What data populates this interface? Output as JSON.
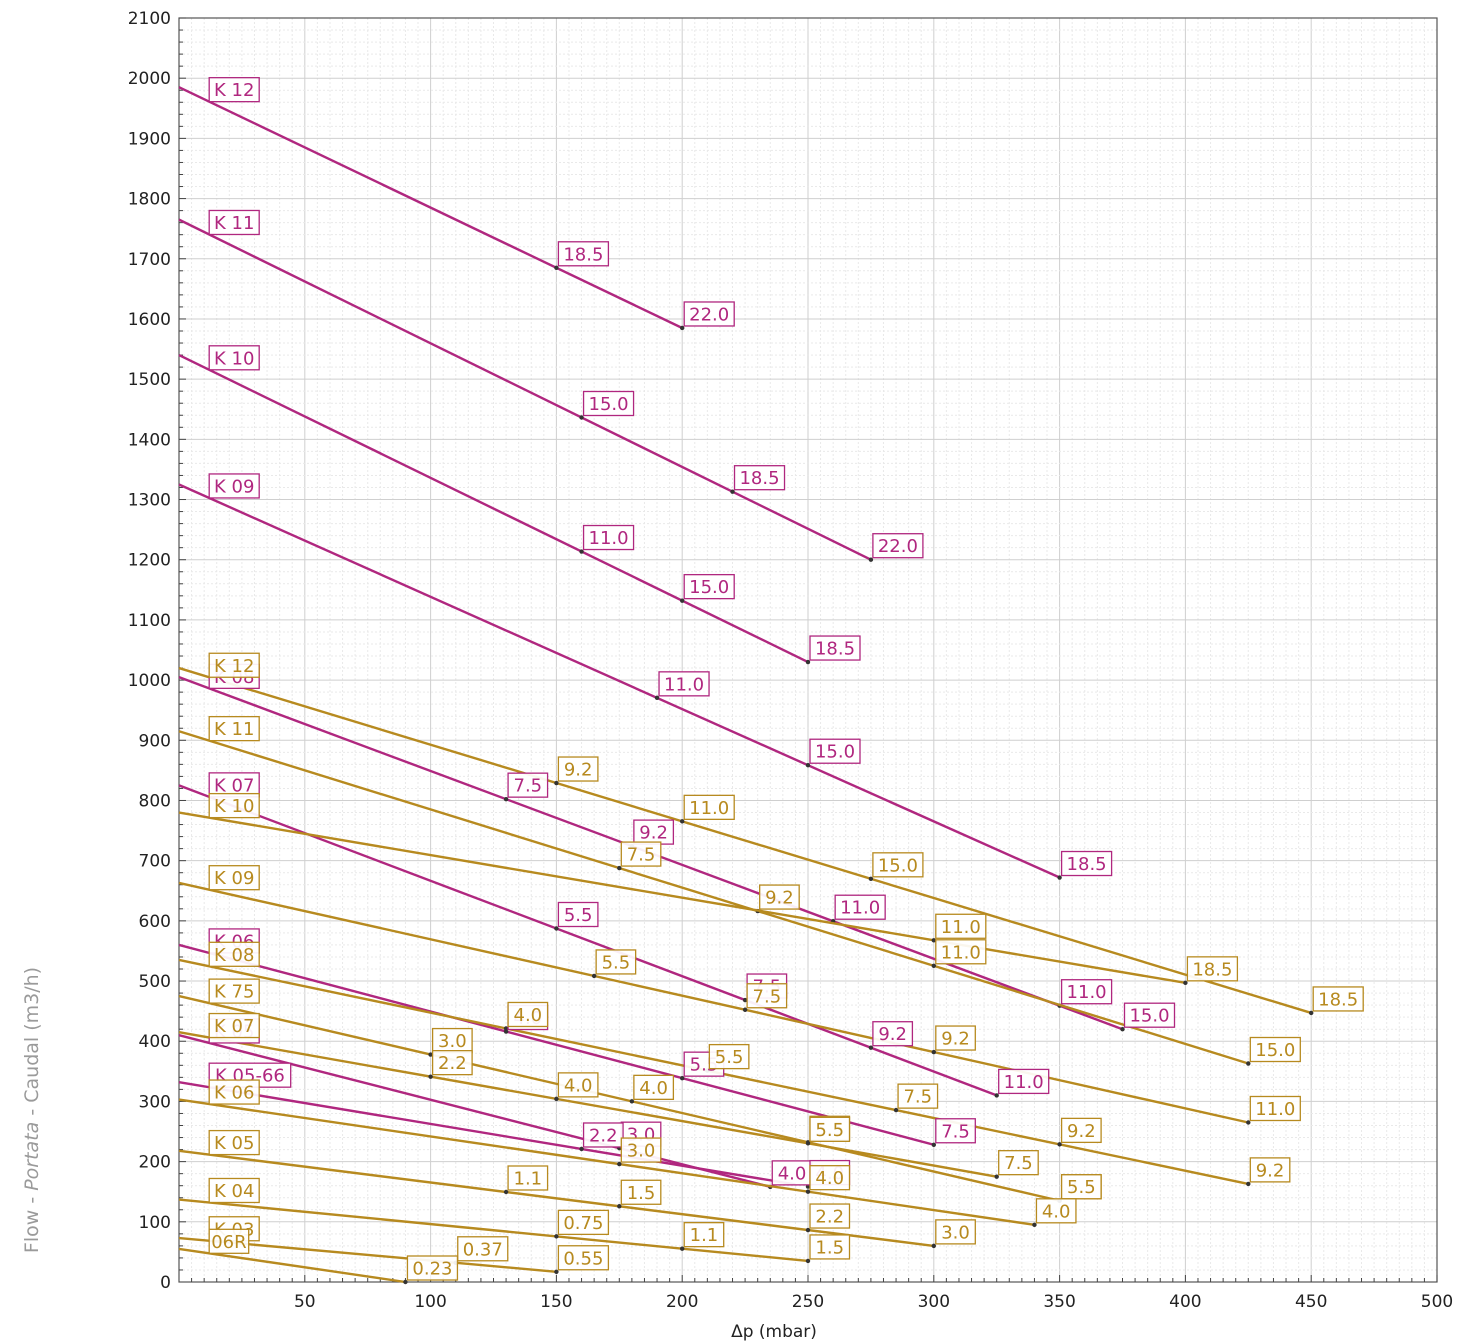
{
  "chart_data": {
    "type": "line",
    "title": "",
    "xlabel": "Δp (mbar)",
    "ylabel_parts": [
      "Flow - ",
      "Portata",
      " - Caudal (m3/h)"
    ],
    "xlim": [
      0,
      500
    ],
    "ylim": [
      0,
      2100
    ],
    "xticks": [
      50,
      100,
      150,
      200,
      250,
      300,
      350,
      400,
      450,
      500
    ],
    "yticks": [
      0,
      100,
      200,
      300,
      400,
      500,
      600,
      700,
      800,
      900,
      1000,
      1100,
      1200,
      1300,
      1400,
      1500,
      1600,
      1700,
      1800,
      1900,
      2000,
      2100
    ],
    "grid": true,
    "colors": {
      "magenta": "#b0277f",
      "gold": "#b78a1f"
    },
    "series": [
      {
        "name": "K 12",
        "color": "magenta",
        "points": [
          [
            0,
            1985
          ],
          [
            200,
            1585
          ]
        ],
        "markers": [
          {
            "text": "18.5",
            "x": 150
          },
          {
            "text": "22.0",
            "x": 200
          }
        ]
      },
      {
        "name": "K 11",
        "color": "magenta",
        "points": [
          [
            0,
            1765
          ],
          [
            275,
            1200
          ]
        ],
        "markers": [
          {
            "text": "15.0",
            "x": 160
          },
          {
            "text": "18.5",
            "x": 220
          },
          {
            "text": "22.0",
            "x": 275
          }
        ]
      },
      {
        "name": "K 10",
        "color": "magenta",
        "points": [
          [
            0,
            1540
          ],
          [
            250,
            1030
          ]
        ],
        "markers": [
          {
            "text": "11.0",
            "x": 160
          },
          {
            "text": "15.0",
            "x": 200
          },
          {
            "text": "18.5",
            "x": 250
          }
        ]
      },
      {
        "name": "K 09",
        "color": "magenta",
        "points": [
          [
            0,
            1325
          ],
          [
            350,
            672
          ]
        ],
        "markers": [
          {
            "text": "11.0",
            "x": 190
          },
          {
            "text": "15.0",
            "x": 250
          },
          {
            "text": "18.5",
            "x": 350
          }
        ]
      },
      {
        "name": "K 08",
        "color": "magenta",
        "points": [
          [
            0,
            1005
          ],
          [
            375,
            420
          ]
        ],
        "markers": [
          {
            "text": "7.5",
            "x": 130
          },
          {
            "text": "9.2",
            "x": 180
          },
          {
            "text": "11.0",
            "x": 260
          },
          {
            "text": "11.0",
            "x": 350
          },
          {
            "text": "15.0",
            "x": 375
          }
        ]
      },
      {
        "name": "K 07",
        "color": "magenta",
        "points": [
          [
            0,
            825
          ],
          [
            325,
            310
          ]
        ],
        "markers": [
          {
            "text": "5.5",
            "x": 150
          },
          {
            "text": "7.5",
            "x": 225
          },
          {
            "text": "9.2",
            "x": 275
          },
          {
            "text": "11.0",
            "x": 325
          }
        ]
      },
      {
        "name": "K 06",
        "color": "magenta",
        "points": [
          [
            0,
            560
          ],
          [
            300,
            228
          ]
        ],
        "markers": [
          {
            "text": "4.0",
            "x": 130
          },
          {
            "text": "5.5",
            "x": 200
          },
          {
            "text": "7.5",
            "x": 300
          }
        ]
      },
      {
        "name": "K 05",
        "color": "magenta",
        "points": [
          [
            0,
            410
          ],
          [
            235,
            158
          ]
        ],
        "markers": [
          {
            "text": "3.0",
            "x": 175
          },
          {
            "text": "4.0",
            "x": 235
          }
        ]
      },
      {
        "name": "K 05-66",
        "color": "magenta",
        "points": [
          [
            0,
            332
          ],
          [
            245,
            162
          ]
        ],
        "markers": [
          {
            "text": "2.2",
            "x": 160
          },
          {
            "text": "4.0",
            "x": 250
          }
        ]
      },
      {
        "name": "K 12",
        "color": "gold",
        "points": [
          [
            0,
            1020
          ],
          [
            450,
            447
          ]
        ],
        "markers": [
          {
            "text": "9.2",
            "x": 150
          },
          {
            "text": "11.0",
            "x": 200
          },
          {
            "text": "15.0",
            "x": 275
          },
          {
            "text": "18.5",
            "x": 450
          }
        ]
      },
      {
        "name": "K 11",
        "color": "gold",
        "points": [
          [
            0,
            915
          ],
          [
            425,
            363
          ]
        ],
        "markers": [
          {
            "text": "7.5",
            "x": 175
          },
          {
            "text": "9.2",
            "x": 230
          },
          {
            "text": "11.0",
            "x": 300
          },
          {
            "text": "15.0",
            "x": 425
          }
        ]
      },
      {
        "name": "K 10",
        "color": "gold",
        "points": [
          [
            0,
            780
          ],
          [
            400,
            497
          ]
        ],
        "markers": [
          {
            "text": "11.0",
            "x": 300
          },
          {
            "text": "18.5",
            "x": 400
          }
        ]
      },
      {
        "name": "K 09",
        "color": "gold",
        "points": [
          [
            0,
            663
          ],
          [
            425,
            265
          ]
        ],
        "markers": [
          {
            "text": "5.5",
            "x": 165
          },
          {
            "text": "7.5",
            "x": 225
          },
          {
            "text": "9.2",
            "x": 300
          },
          {
            "text": "11.0",
            "x": 425
          }
        ]
      },
      {
        "name": "K 08",
        "color": "gold",
        "points": [
          [
            0,
            535
          ],
          [
            425,
            163
          ]
        ],
        "markers": [
          {
            "text": "4.0",
            "x": 130
          },
          {
            "text": "5.5",
            "x": 210
          },
          {
            "text": "7.5",
            "x": 285
          },
          {
            "text": "9.2",
            "x": 350
          },
          {
            "text": "9.2",
            "x": 425
          }
        ]
      },
      {
        "name": "K 75",
        "color": "gold",
        "points": [
          [
            0,
            475
          ],
          [
            350,
            135
          ]
        ],
        "markers": [
          {
            "text": "3.0",
            "x": 100
          },
          {
            "text": "4.0",
            "x": 180
          },
          {
            "text": "5.5",
            "x": 250
          },
          {
            "text": "7.5",
            "x": 350
          },
          {
            "text": "5.5",
            "x": 350
          }
        ]
      },
      {
        "name": "K 07",
        "color": "gold",
        "points": [
          [
            0,
            415
          ],
          [
            325,
            175
          ]
        ],
        "markers": [
          {
            "text": "2.2",
            "x": 100
          },
          {
            "text": "4.0",
            "x": 150
          },
          {
            "text": "5.5",
            "x": 250
          },
          {
            "text": "7.5",
            "x": 325
          }
        ]
      },
      {
        "name": "K 06",
        "color": "gold",
        "points": [
          [
            0,
            303
          ],
          [
            340,
            95
          ]
        ],
        "markers": [
          {
            "text": "3.0",
            "x": 175
          },
          {
            "text": "4.0",
            "x": 250
          },
          {
            "text": "4.0",
            "x": 340
          }
        ]
      },
      {
        "name": "K 05",
        "color": "gold",
        "points": [
          [
            0,
            218
          ],
          [
            300,
            60
          ]
        ],
        "markers": [
          {
            "text": "1.1",
            "x": 130
          },
          {
            "text": "1.5",
            "x": 175
          },
          {
            "text": "2.2",
            "x": 250
          },
          {
            "text": "3.0",
            "x": 300
          }
        ]
      },
      {
        "name": "K 04",
        "color": "gold",
        "points": [
          [
            0,
            137
          ],
          [
            250,
            35
          ]
        ],
        "markers": [
          {
            "text": "0.75",
            "x": 150
          },
          {
            "text": "1.1",
            "x": 200
          },
          {
            "text": "1.5",
            "x": 250
          }
        ]
      },
      {
        "name": "K 03",
        "color": "gold",
        "points": [
          [
            0,
            73
          ],
          [
            150,
            17
          ]
        ],
        "markers": [
          {
            "text": "0.37",
            "x": 110
          },
          {
            "text": "0.55",
            "x": 150
          }
        ]
      },
      {
        "name": "06R",
        "color": "gold",
        "points": [
          [
            0,
            55
          ],
          [
            90,
            0
          ]
        ],
        "markers": [
          {
            "text": "0.23",
            "x": 90
          }
        ]
      }
    ]
  }
}
